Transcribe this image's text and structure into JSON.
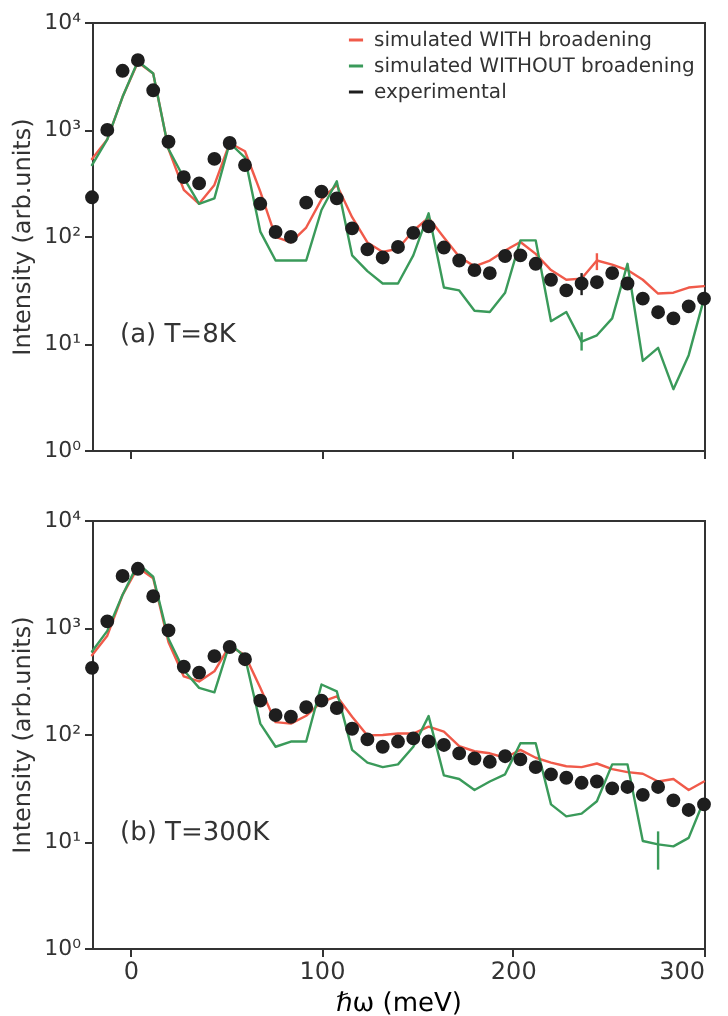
{
  "chart_data": [
    {
      "type": "line",
      "annotations": [
        "(a) T=8K"
      ],
      "ylabel": "Intensity (arb.units)",
      "log": "y",
      "legend": "top right",
      "tick_labels": "y",
      "xlim": [
        -20,
        300
      ],
      "xticks": [
        0,
        100,
        200,
        300
      ],
      "ylim": [
        1,
        10000
      ],
      "yticks": [
        {
          "value": 1,
          "label": "10⁰"
        },
        {
          "value": 10,
          "label": "10¹"
        },
        {
          "value": 100,
          "label": "10²"
        },
        {
          "value": 1000,
          "label": "10³"
        },
        {
          "value": 10000,
          "label": "10⁴"
        }
      ],
      "x": [
        -20,
        -12,
        -4,
        4,
        12,
        20,
        28,
        36,
        44,
        52,
        60,
        68,
        76,
        84,
        92,
        100,
        108,
        116,
        124,
        132,
        140,
        148,
        156,
        164,
        172,
        180,
        188,
        196,
        204,
        212,
        220,
        228,
        236,
        244,
        252,
        260,
        268,
        276,
        284,
        292,
        300
      ],
      "series": [
        {
          "name": "simulated WITH broadening",
          "color": "#f05a4a",
          "values": [
            525,
            800,
            2000,
            4200,
            3300,
            650,
            270,
            200,
            300,
            740,
            620,
            260,
            98,
            87,
            120,
            220,
            300,
            150,
            87,
            71,
            76,
            112,
            148,
            97,
            64,
            52,
            59,
            73,
            88,
            68,
            48,
            39,
            40,
            59,
            54,
            48,
            39,
            29,
            29.5,
            33,
            34
          ],
          "errors": [
            null,
            null,
            null,
            null,
            null,
            null,
            null,
            null,
            null,
            null,
            null,
            null,
            null,
            null,
            null,
            null,
            null,
            null,
            null,
            null,
            null,
            null,
            null,
            null,
            null,
            null,
            null,
            null,
            null,
            null,
            null,
            null,
            null,
            [
              48,
              69
            ],
            null,
            null,
            null,
            null,
            null,
            null,
            null
          ]
        },
        {
          "name": "simulated WITHOUT broadening",
          "color": "#3a9a5a",
          "values": [
            460,
            800,
            2000,
            4300,
            3300,
            650,
            350,
            200,
            225,
            740,
            540,
            110,
            59,
            59,
            59,
            175,
            325,
            66,
            47,
            36,
            36,
            66,
            163,
            33,
            31,
            20,
            19.5,
            29.5,
            91,
            91,
            16,
            19.5,
            10.3,
            11.8,
            17,
            55,
            6.8,
            9,
            3.7,
            7.7,
            26
          ],
          "errors": [
            null,
            null,
            null,
            null,
            null,
            null,
            null,
            null,
            null,
            null,
            null,
            null,
            null,
            null,
            null,
            null,
            null,
            null,
            null,
            null,
            null,
            null,
            null,
            null,
            null,
            null,
            null,
            null,
            null,
            null,
            null,
            null,
            [
              8.5,
              12.6
            ],
            null,
            null,
            null,
            null,
            null,
            null,
            null,
            null
          ]
        },
        {
          "name": "experimental",
          "type": "scatter",
          "marker": "circle",
          "color": "#1e1e1e",
          "values": [
            230,
            980,
            3500,
            4400,
            2300,
            760,
            355,
            310,
            525,
            740,
            460,
            200,
            109,
            98,
            205,
            260,
            225,
            118,
            75,
            63,
            79,
            107,
            123,
            78,
            59,
            48,
            45,
            65,
            66,
            55,
            39,
            31,
            36,
            37,
            45,
            36,
            26,
            19.4,
            17,
            22,
            26
          ],
          "errors": [
            null,
            null,
            null,
            null,
            null,
            null,
            null,
            null,
            null,
            null,
            null,
            null,
            null,
            null,
            null,
            null,
            null,
            null,
            null,
            null,
            null,
            null,
            null,
            null,
            null,
            null,
            null,
            null,
            null,
            null,
            null,
            null,
            [
              28,
              45
            ],
            null,
            null,
            null,
            null,
            null,
            null,
            null,
            null
          ]
        }
      ]
    },
    {
      "type": "line",
      "annotations": [
        "(b) T=300K"
      ],
      "ylabel": "Intensity (arb.units)",
      "xlabel": "ℏω (meV)",
      "log": "y",
      "xlim": [
        -20,
        300
      ],
      "xticks": [
        0,
        100,
        200,
        300
      ],
      "ylim": [
        1,
        10000
      ],
      "yticks": [
        {
          "value": 1,
          "label": "10⁰"
        },
        {
          "value": 10,
          "label": "10¹"
        },
        {
          "value": 100,
          "label": "10²"
        },
        {
          "value": 1000,
          "label": "10³"
        },
        {
          "value": 10000,
          "label": "10⁴"
        }
      ],
      "x": [
        -20,
        -12,
        -4,
        4,
        12,
        20,
        28,
        36,
        44,
        52,
        60,
        68,
        76,
        84,
        92,
        100,
        108,
        116,
        124,
        132,
        140,
        148,
        156,
        164,
        172,
        180,
        188,
        196,
        204,
        212,
        220,
        228,
        236,
        244,
        252,
        260,
        268,
        276,
        284,
        292,
        300
      ],
      "series": [
        {
          "color": "#f05a4a",
          "values": [
            545,
            830,
            2000,
            3600,
            2850,
            720,
            345,
            310,
            385,
            670,
            545,
            270,
            129,
            125,
            148,
            200,
            225,
            145,
            97,
            98,
            101,
            101,
            117,
            105,
            77,
            69,
            66,
            60,
            71,
            60,
            54,
            50,
            49,
            53,
            47,
            44,
            42.5,
            36,
            38,
            30,
            36
          ]
        },
        {
          "color": "#3a9a5a",
          "values": [
            590,
            920,
            2000,
            3900,
            2950,
            775,
            395,
            270,
            245,
            700,
            525,
            125,
            76,
            85,
            85,
            290,
            250,
            71,
            54,
            49,
            52,
            76,
            147,
            41,
            38,
            30,
            36,
            42,
            82,
            82,
            22,
            17,
            18,
            23.5,
            52,
            52,
            10,
            9.3,
            8.9,
            10.7,
            24
          ],
          "errors": [
            null,
            null,
            null,
            null,
            null,
            null,
            null,
            null,
            null,
            null,
            null,
            null,
            null,
            null,
            null,
            null,
            null,
            null,
            null,
            null,
            null,
            null,
            null,
            null,
            null,
            null,
            null,
            null,
            null,
            null,
            null,
            null,
            null,
            null,
            null,
            null,
            null,
            [
              5.4,
              12.3
            ],
            null,
            null,
            null
          ]
        },
        {
          "type": "scatter",
          "marker": "circle",
          "color": "#1e1e1e",
          "values": [
            415,
            1130,
            3000,
            3500,
            1940,
            930,
            425,
            375,
            535,
            650,
            500,
            205,
            150,
            145,
            178,
            205,
            175,
            112,
            89,
            76,
            85,
            91,
            85,
            79,
            66,
            59,
            55,
            62,
            58,
            49,
            42,
            39,
            35,
            36,
            31,
            32,
            27,
            32,
            24,
            19.5,
            22
          ]
        }
      ]
    }
  ]
}
